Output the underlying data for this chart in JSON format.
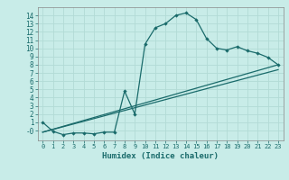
{
  "xlabel": "Humidex (Indice chaleur)",
  "bg_color": "#c8ece8",
  "grid_color": "#b2dbd6",
  "line_color": "#1a6b6b",
  "spine_color": "#888888",
  "xlim": [
    -0.5,
    23.5
  ],
  "ylim": [
    -1.2,
    15.0
  ],
  "xticks": [
    0,
    1,
    2,
    3,
    4,
    5,
    6,
    7,
    8,
    9,
    10,
    11,
    12,
    13,
    14,
    15,
    16,
    17,
    18,
    19,
    20,
    21,
    22,
    23
  ],
  "yticks": [
    0,
    1,
    2,
    3,
    4,
    5,
    6,
    7,
    8,
    9,
    10,
    11,
    12,
    13,
    14
  ],
  "ytick_labels": [
    "-0",
    "1",
    "2",
    "3",
    "4",
    "5",
    "6",
    "7",
    "8",
    "9",
    "10",
    "11",
    "12",
    "13",
    "14"
  ],
  "line1_x": [
    0,
    1,
    2,
    3,
    4,
    5,
    6,
    7,
    8,
    9,
    10,
    11,
    12,
    13,
    14,
    15,
    16,
    17,
    18,
    19,
    20,
    21,
    22,
    23
  ],
  "line1_y": [
    1.0,
    -0.1,
    -0.5,
    -0.3,
    -0.3,
    -0.4,
    -0.2,
    -0.2,
    4.8,
    2.0,
    10.5,
    12.5,
    13.0,
    14.0,
    14.3,
    13.5,
    11.2,
    10.0,
    9.8,
    10.2,
    9.7,
    9.4,
    8.9,
    8.0
  ],
  "line2_x": [
    0,
    23
  ],
  "line2_y": [
    -0.2,
    8.0
  ],
  "line3_x": [
    0,
    23
  ],
  "line3_y": [
    -0.2,
    7.4
  ]
}
